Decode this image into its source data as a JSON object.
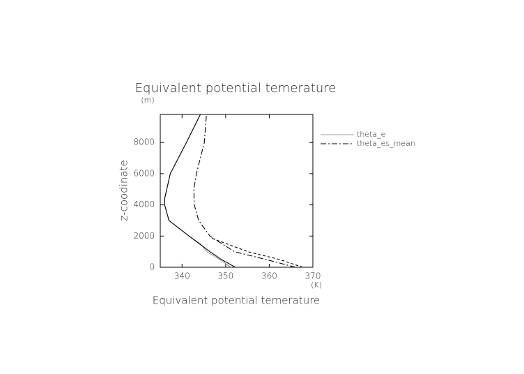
{
  "chart_data": {
    "type": "line",
    "title": "Equivalent potential temerature",
    "xlabel": "Equivalent potential temerature",
    "ylabel": "z-coodinate",
    "xunit": "(K)",
    "yunit": "(m)",
    "xlim": [
      335,
      370
    ],
    "xticks": [
      340,
      350,
      360,
      370
    ],
    "ylim": [
      0,
      9800
    ],
    "yticks": [
      0,
      2000,
      4000,
      6000,
      8000
    ],
    "grid": false,
    "legend": "right",
    "series": [
      {
        "name": "theta_e",
        "color": "#999999",
        "dash": "none",
        "x": [
          351.2,
          348.6,
          345.7,
          344.2,
          341.6,
          337.0,
          336.0,
          336.0,
          337.3,
          341.0,
          344.2
        ],
        "y": [
          0,
          500,
          1000,
          1500,
          2000,
          3000,
          4000,
          4400,
          6000,
          8000,
          9800
        ]
      },
      {
        "name": "theta_es_mean",
        "color": "#000000",
        "dash": "8 3 2 3",
        "x": [
          366.0,
          359.2,
          352.0,
          346.4,
          343.8,
          342.8,
          342.7,
          343.3,
          345.1,
          345.6
        ],
        "y": [
          0,
          500,
          1000,
          2000,
          3000,
          4000,
          5000,
          6000,
          8000,
          9800
        ]
      },
      {
        "color": "#000000",
        "dash": "none",
        "x": [
          352.2,
          349.0,
          346.4,
          341.6,
          337.0,
          336.0,
          336.0,
          337.3,
          341.0,
          344.2
        ],
        "y": [
          0,
          500,
          1000,
          2000,
          3000,
          4000,
          4400,
          6000,
          8000,
          9800
        ]
      },
      {
        "color": "#000000",
        "dash": "4 3",
        "x": [
          367.7,
          362.3,
          355.1,
          346.4
        ],
        "y": [
          0,
          500,
          1000,
          1900
        ]
      }
    ]
  }
}
